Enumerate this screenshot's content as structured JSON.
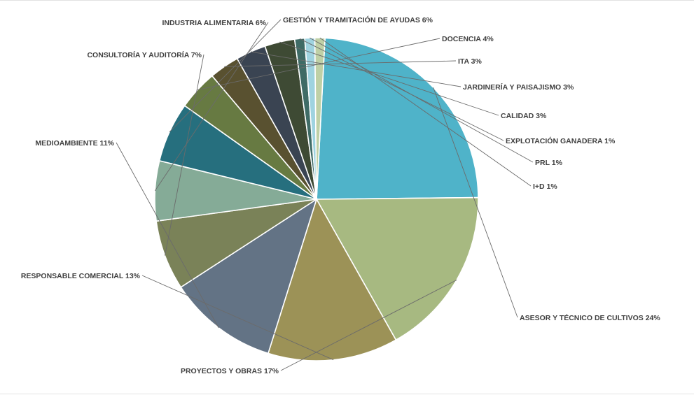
{
  "chart_data": {
    "type": "pie",
    "title": "",
    "slices": [
      {
        "label": "ASESOR Y TÉCNICO DE CULTIVOS",
        "pct_text": "24%",
        "value": 24,
        "color": "#4fb3c9"
      },
      {
        "label": "PROYECTOS Y OBRAS",
        "pct_text": "17%",
        "value": 17,
        "color": "#a7b981"
      },
      {
        "label": "RESPONSABLE COMERCIAL",
        "pct_text": "13%",
        "value": 13,
        "color": "#9c9257"
      },
      {
        "label": "MEDIOAMBIENTE",
        "pct_text": "11%",
        "value": 11,
        "color": "#637385"
      },
      {
        "label": "CONSULTORÍA Y AUDITORÍA",
        "pct_text": "7%",
        "value": 7,
        "color": "#7a8258"
      },
      {
        "label": "INDUSTRIA ALIMENTARIA",
        "pct_text": "6%",
        "value": 6,
        "color": "#85ab97"
      },
      {
        "label": "GESTIÓN Y TRAMITACIÓN DE AYUDAS",
        "pct_text": "6%",
        "value": 6,
        "color": "#266f7e"
      },
      {
        "label": "DOCENCIA",
        "pct_text": "4%",
        "value": 4,
        "color": "#677a42"
      },
      {
        "label": "ITA",
        "pct_text": "3%",
        "value": 3,
        "color": "#595130"
      },
      {
        "label": "JARDINERÍA Y PAISAJISMO",
        "pct_text": "3%",
        "value": 3,
        "color": "#3a4452"
      },
      {
        "label": "CALIDAD",
        "pct_text": "3%",
        "value": 3,
        "color": "#3e4a34"
      },
      {
        "label": "EXPLOTACIÓN GANADERA",
        "pct_text": "1%",
        "value": 1,
        "color": "#3f6b66"
      },
      {
        "label": "PRL",
        "pct_text": "1%",
        "value": 1,
        "color": "#9fd3e0"
      },
      {
        "label": "I+D",
        "pct_text": "1%",
        "value": 1,
        "color": "#bfd0a6"
      }
    ]
  }
}
